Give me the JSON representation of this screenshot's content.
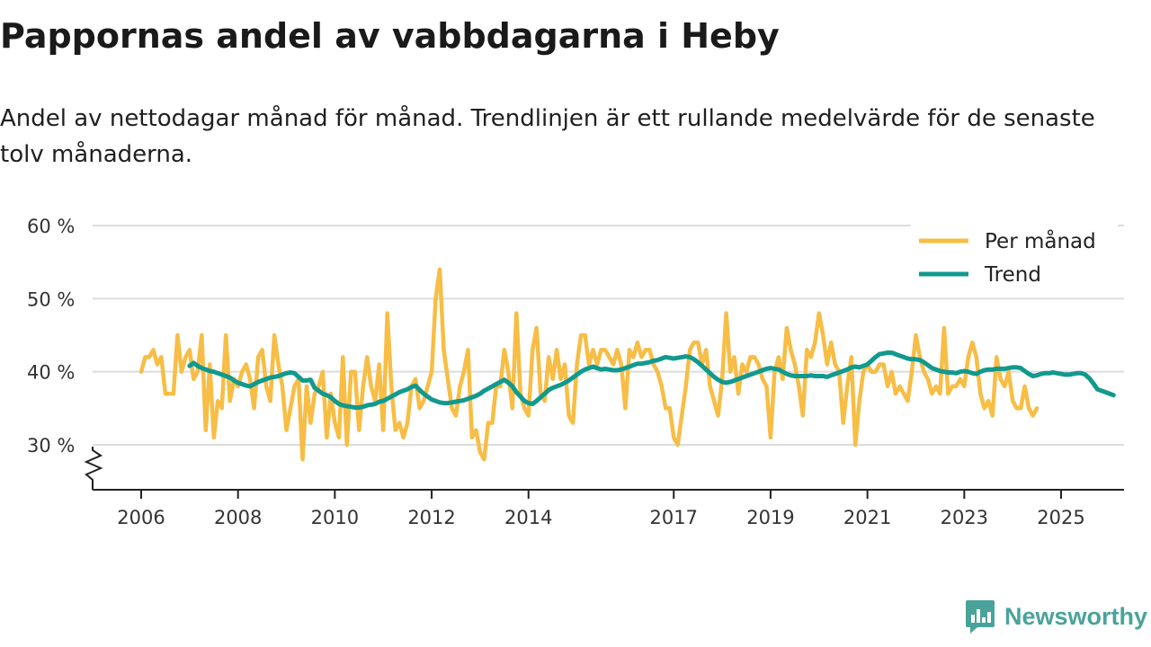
{
  "title": "Pappornas andel av vabbdagarna i Heby",
  "subtitle": "Andel av nettodagar månad för månad. Trendlinjen är ett rullande medelvärde för de senaste tolv månaderna.",
  "brand": {
    "name": "Newsworthy",
    "icon": "newsworthy-logo-icon"
  },
  "colors": {
    "monthly": "#f7bd45",
    "trend": "#12998e",
    "grid": "#dcdcdc",
    "axis": "#222222",
    "brand": "#4aa39a"
  },
  "chart_data": {
    "type": "line",
    "ylabel": "",
    "xlabel": "",
    "y_ticks": [
      30,
      40,
      50,
      60
    ],
    "y_tick_labels": [
      "30 %",
      "40 %",
      "50 %",
      "60 %"
    ],
    "ylim": [
      24,
      60
    ],
    "xlim": [
      2005.5,
      2025.8
    ],
    "x_ticks": [
      2006,
      2008,
      2010,
      2012,
      2014,
      2017,
      2019,
      2021,
      2023,
      2025
    ],
    "x_tick_labels": [
      "2006",
      "2008",
      "2010",
      "2012",
      "2014",
      "2017",
      "2019",
      "2021",
      "2023",
      "2025"
    ],
    "axis_break": true,
    "legend": {
      "position": "top-right",
      "entries": [
        "Per månad",
        "Trend"
      ]
    },
    "series": [
      {
        "name": "Per månad",
        "x_start": 2006.0,
        "step": 0.0833333,
        "values": [
          40,
          42,
          42,
          43,
          41,
          42,
          37,
          37,
          37,
          45,
          40,
          42,
          43,
          39,
          40,
          45,
          32,
          41,
          31,
          36,
          35,
          45,
          36,
          39,
          38,
          40,
          41,
          39,
          35,
          42,
          43,
          38,
          36,
          45,
          41,
          38,
          32,
          35,
          38,
          39,
          28,
          38,
          33,
          37,
          38,
          40,
          31,
          37,
          33,
          31,
          42,
          30,
          40,
          40,
          32,
          38,
          42,
          38,
          36,
          41,
          32,
          48,
          38,
          32,
          33,
          31,
          33,
          38,
          39,
          35,
          36,
          38,
          40,
          50,
          54,
          43,
          39,
          35,
          34,
          38,
          40,
          43,
          31,
          32,
          29,
          28,
          33,
          33,
          38,
          38,
          43,
          40,
          35,
          48,
          37,
          35,
          34,
          43,
          46,
          37,
          36,
          42,
          39,
          43,
          39,
          41,
          34,
          33,
          41,
          45,
          45,
          41,
          43,
          41,
          43,
          43,
          42,
          41,
          43,
          41,
          35,
          43,
          42,
          44,
          42,
          43,
          43,
          41,
          40,
          38,
          35,
          35,
          31,
          30,
          34,
          38,
          43,
          44,
          44,
          41,
          43,
          38,
          36,
          34,
          39,
          48,
          40,
          42,
          37,
          41,
          40,
          42,
          42,
          41,
          39,
          38,
          31,
          40,
          42,
          39,
          46,
          43,
          41,
          38,
          34,
          43,
          42,
          44,
          48,
          45,
          41,
          44,
          41,
          40,
          33,
          38,
          42,
          30,
          36,
          40,
          41,
          40,
          40,
          41,
          41,
          38,
          40,
          37,
          38,
          37,
          36,
          40,
          45,
          42,
          40,
          39,
          37,
          38,
          37,
          46,
          37,
          38,
          38,
          39,
          38,
          42,
          44,
          42,
          37,
          35,
          36,
          34,
          42,
          39,
          38,
          40,
          36,
          35,
          35,
          38,
          35,
          34,
          35
        ]
      },
      {
        "name": "Trend",
        "x_start": 2007.0,
        "step": 0.0833333,
        "values": [
          40.8,
          41.2,
          40.8,
          40.5,
          40.3,
          40.1,
          40,
          39.8,
          39.6,
          39.4,
          39.2,
          38.8,
          38.5,
          38.3,
          38.1,
          38,
          38.3,
          38.6,
          38.8,
          39,
          39.2,
          39.3,
          39.4,
          39.6,
          39.8,
          39.9,
          39.8,
          39.3,
          38.8,
          38.8,
          38.9,
          37.8,
          37.4,
          37,
          36.8,
          36.5,
          36,
          35.6,
          35.4,
          35.3,
          35.2,
          35.1,
          35.1,
          35.2,
          35.4,
          35.5,
          35.6,
          35.9,
          36,
          36.3,
          36.6,
          36.9,
          37.2,
          37.4,
          37.6,
          37.9,
          38.1,
          37.5,
          37,
          36.6,
          36.2,
          36,
          35.8,
          35.7,
          35.7,
          35.8,
          35.9,
          36,
          36.1,
          36.3,
          36.5,
          36.7,
          37,
          37.4,
          37.7,
          38,
          38.3,
          38.6,
          38.9,
          38.5,
          38,
          37.2,
          36.6,
          36,
          35.7,
          35.6,
          36,
          36.5,
          37,
          37.5,
          37.8,
          38,
          38.2,
          38.5,
          38.8,
          39.2,
          39.6,
          40,
          40.3,
          40.5,
          40.7,
          40.5,
          40.3,
          40.4,
          40.3,
          40.2,
          40.2,
          40.3,
          40.5,
          40.7,
          40.9,
          41.1,
          41.1,
          41.2,
          41.3,
          41.5,
          41.6,
          41.8,
          42,
          41.9,
          41.8,
          41.9,
          42,
          42.1,
          42,
          41.7,
          41.3,
          40.8,
          40.3,
          39.8,
          39.3,
          38.9,
          38.6,
          38.5,
          38.6,
          38.8,
          39,
          39.2,
          39.4,
          39.6,
          39.8,
          40,
          40.2,
          40.4,
          40.5,
          40.4,
          40.3,
          40,
          39.7,
          39.5,
          39.4,
          39.4,
          39.4,
          39.4,
          39.5,
          39.4,
          39.4,
          39.4,
          39.3,
          39.5,
          39.7,
          39.9,
          40.1,
          40.3,
          40.6,
          40.7,
          40.6,
          40.8,
          41,
          41.5,
          42,
          42.4,
          42.5,
          42.6,
          42.6,
          42.4,
          42.2,
          42,
          41.8,
          41.7,
          41.7,
          41.6,
          41.3,
          40.9,
          40.5,
          40.3,
          40.1,
          40,
          39.9,
          39.9,
          39.8,
          40,
          40.1,
          40,
          39.8,
          39.7,
          40,
          40.2,
          40.3,
          40.3,
          40.4,
          40.4,
          40.4,
          40.5,
          40.6,
          40.6,
          40.5,
          40.1,
          39.7,
          39.4,
          39.5,
          39.7,
          39.8,
          39.8,
          39.9,
          39.8,
          39.7,
          39.6,
          39.6,
          39.7,
          39.8,
          39.8,
          39.6,
          39.1,
          38.4,
          37.6,
          37.4,
          37.2,
          37.0,
          36.8
        ]
      }
    ]
  }
}
